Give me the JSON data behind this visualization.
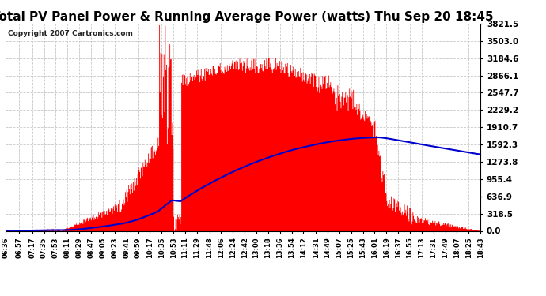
{
  "title": "Total PV Panel Power & Running Average Power (watts) Thu Sep 20 18:45",
  "copyright": "Copyright 2007 Cartronics.com",
  "background_color": "#ffffff",
  "plot_bg_color": "#ffffff",
  "grid_color": "#c8c8c8",
  "bar_color": "#ff0000",
  "line_color": "#0000cc",
  "title_fontsize": 11,
  "copyright_fontsize": 6.5,
  "ytick_labels": [
    "0.0",
    "318.5",
    "636.9",
    "955.4",
    "1273.8",
    "1592.3",
    "1910.7",
    "2229.2",
    "2547.7",
    "2866.1",
    "3184.6",
    "3503.0",
    "3821.5"
  ],
  "ytick_values": [
    0.0,
    318.5,
    636.9,
    955.4,
    1273.8,
    1592.3,
    1910.7,
    2229.2,
    2547.7,
    2866.1,
    3184.6,
    3503.0,
    3821.5
  ],
  "ymax": 3821.5,
  "xtick_labels": [
    "06:36",
    "06:57",
    "07:17",
    "07:35",
    "07:53",
    "08:11",
    "08:29",
    "08:47",
    "09:05",
    "09:23",
    "09:41",
    "09:59",
    "10:17",
    "10:35",
    "10:53",
    "11:11",
    "11:29",
    "11:48",
    "12:06",
    "12:24",
    "12:42",
    "13:00",
    "13:18",
    "13:36",
    "13:54",
    "14:12",
    "14:31",
    "14:49",
    "15:07",
    "15:25",
    "15:43",
    "16:01",
    "16:19",
    "16:37",
    "16:55",
    "17:13",
    "17:31",
    "17:49",
    "18:07",
    "18:25",
    "18:43"
  ]
}
